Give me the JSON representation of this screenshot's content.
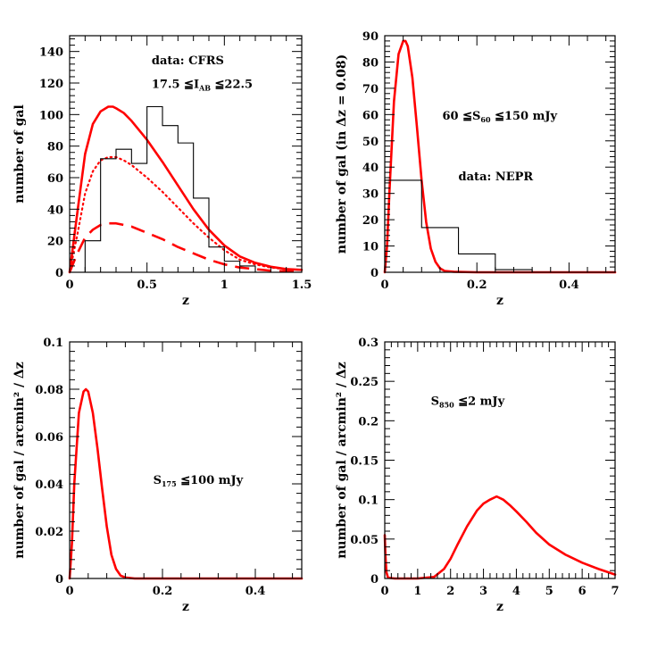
{
  "chart_data": [
    {
      "id": "cfrs",
      "type": "line",
      "xlabel": "z",
      "ylabel": "number of gal",
      "xlim": [
        0,
        1.5
      ],
      "ylim": [
        0,
        150
      ],
      "xticks": [
        0,
        0.5,
        1,
        1.5
      ],
      "xtick_labels": [
        "0",
        "0.5",
        "1",
        "1.5"
      ],
      "yticks": [
        0,
        20,
        40,
        60,
        80,
        100,
        120,
        140
      ],
      "ytick_labels": [
        "0",
        "20",
        "40",
        "60",
        "80",
        "100",
        "120",
        "140"
      ],
      "annotations": [
        {
          "text": "data: CFRS",
          "x": 0.53,
          "y": 132
        },
        {
          "text": "17.5  ≦I",
          "sub": "AB",
          "after": " ≦22.5",
          "x": 0.53,
          "y": 117
        }
      ],
      "series": [
        {
          "style": "solid",
          "color": "#ff0000",
          "x": [
            0,
            0.05,
            0.1,
            0.15,
            0.2,
            0.25,
            0.28,
            0.3,
            0.35,
            0.4,
            0.5,
            0.6,
            0.7,
            0.8,
            0.9,
            1.0,
            1.1,
            1.2,
            1.3,
            1.4,
            1.5
          ],
          "y": [
            0,
            38,
            75,
            94,
            102,
            105,
            105,
            104,
            101,
            96,
            84,
            70,
            55,
            40,
            27,
            17,
            10,
            6,
            3.5,
            2,
            1.5
          ]
        },
        {
          "style": "dotted",
          "color": "#ff0000",
          "x": [
            0,
            0.05,
            0.1,
            0.15,
            0.2,
            0.25,
            0.3,
            0.35,
            0.4,
            0.5,
            0.6,
            0.7,
            0.8,
            0.9,
            1.0,
            1.1,
            1.2,
            1.3,
            1.4,
            1.5
          ],
          "y": [
            0,
            24,
            50,
            64,
            71,
            73,
            73,
            71,
            68,
            60,
            51,
            41,
            31,
            22,
            14,
            8,
            5,
            3,
            2,
            1.5
          ]
        },
        {
          "style": "dashed",
          "color": "#ff0000",
          "x": [
            0,
            0.05,
            0.1,
            0.15,
            0.2,
            0.25,
            0.3,
            0.35,
            0.4,
            0.5,
            0.6,
            0.7,
            0.8,
            0.9,
            1.0,
            1.1,
            1.2,
            1.3,
            1.4,
            1.5
          ],
          "y": [
            0,
            12,
            22,
            27,
            30,
            31,
            31,
            30,
            29,
            25,
            21,
            16,
            12,
            8,
            5,
            3,
            2,
            1,
            0.6,
            0.3
          ]
        },
        {
          "style": "histogram",
          "color": "#000000",
          "edges": [
            0.1,
            0.2,
            0.3,
            0.4,
            0.5,
            0.6,
            0.7,
            0.8,
            0.9,
            1.0,
            1.1,
            1.2
          ],
          "counts": [
            20,
            72,
            78,
            69,
            105,
            93,
            82,
            47,
            16,
            7,
            4
          ]
        }
      ]
    },
    {
      "id": "nepr",
      "type": "line",
      "xlabel": "z",
      "ylabel": "number of gal (in Δz = 0.08)",
      "xlim": [
        0,
        0.5
      ],
      "ylim": [
        0,
        90
      ],
      "xticks": [
        0,
        0.2,
        0.4
      ],
      "xtick_labels": [
        "0",
        "0.2",
        "0.4"
      ],
      "yticks": [
        0,
        10,
        20,
        30,
        40,
        50,
        60,
        70,
        80,
        90
      ],
      "ytick_labels": [
        "0",
        "10",
        "20",
        "30",
        "40",
        "50",
        "60",
        "70",
        "80",
        "90"
      ],
      "annotations": [
        {
          "text": "60  ≦S",
          "sub": "60",
          "after": " ≦150  mJy",
          "x": 0.125,
          "y": 58
        },
        {
          "text": "data:  NEPR",
          "x": 0.16,
          "y": 35
        }
      ],
      "series": [
        {
          "style": "solid",
          "color": "#ff0000",
          "x": [
            0,
            0.005,
            0.01,
            0.02,
            0.03,
            0.04,
            0.045,
            0.05,
            0.06,
            0.07,
            0.08,
            0.09,
            0.1,
            0.11,
            0.12,
            0.13,
            0.15,
            0.2,
            0.5
          ],
          "y": [
            0,
            10,
            30,
            65,
            83,
            88,
            88,
            86,
            74,
            55,
            35,
            19,
            9,
            4,
            1.5,
            0.5,
            0.2,
            0,
            0
          ]
        },
        {
          "style": "histogram",
          "color": "#000000",
          "edges": [
            0,
            0.08,
            0.16,
            0.24,
            0.32
          ],
          "counts": [
            35,
            17,
            7,
            1
          ]
        }
      ]
    },
    {
      "id": "s175",
      "type": "line",
      "xlabel": "z",
      "ylabel": "number of gal / arcmin² / Δz",
      "xlim": [
        0,
        0.5
      ],
      "ylim": [
        0,
        0.1
      ],
      "xticks": [
        0,
        0.2,
        0.4
      ],
      "xtick_labels": [
        "0",
        "0.2",
        "0.4"
      ],
      "yticks": [
        0,
        0.02,
        0.04,
        0.06,
        0.08,
        0.1
      ],
      "ytick_labels": [
        "0",
        "0.02",
        "0.04",
        "0.06",
        "0.08",
        "0.1"
      ],
      "annotations": [
        {
          "text": "S",
          "sub": "175",
          "after": " ≦100  mJy",
          "x": 0.18,
          "y": 0.04
        }
      ],
      "series": [
        {
          "style": "solid",
          "color": "#ff0000",
          "x": [
            0,
            0.005,
            0.01,
            0.02,
            0.03,
            0.035,
            0.04,
            0.05,
            0.06,
            0.07,
            0.08,
            0.09,
            0.1,
            0.11,
            0.12,
            0.14,
            0.2,
            0.5
          ],
          "y": [
            0,
            0.015,
            0.04,
            0.07,
            0.079,
            0.08,
            0.079,
            0.07,
            0.055,
            0.038,
            0.022,
            0.01,
            0.004,
            0.0012,
            0.0004,
            0,
            0,
            0
          ]
        }
      ]
    },
    {
      "id": "s850",
      "type": "line",
      "xlabel": "z",
      "ylabel": "number of gal / arcmin² / Δz",
      "xlim": [
        0,
        7
      ],
      "ylim": [
        0,
        0.3
      ],
      "xticks": [
        0,
        1,
        2,
        3,
        4,
        5,
        6,
        7
      ],
      "xtick_labels": [
        "0",
        "1",
        "2",
        "3",
        "4",
        "5",
        "6",
        "7"
      ],
      "yticks": [
        0,
        0.05,
        0.1,
        0.15,
        0.2,
        0.25,
        0.3
      ],
      "ytick_labels": [
        "0",
        "0.05",
        "0.1",
        "0.15",
        "0.2",
        "0.25",
        "0.3"
      ],
      "annotations": [
        {
          "text": "S",
          "sub": "850",
          "after": " ≦2  mJy",
          "x": 1.4,
          "y": 0.22
        }
      ],
      "series": [
        {
          "style": "solid",
          "color": "#ff0000",
          "x": [
            0,
            0.02,
            0.05,
            0.1,
            0.3,
            1.0,
            1.5,
            1.8,
            2.0,
            2.2,
            2.5,
            2.8,
            3.0,
            3.2,
            3.4,
            3.6,
            3.8,
            4.0,
            4.3,
            4.6,
            5.0,
            5.5,
            6.0,
            6.5,
            7.0
          ],
          "y": [
            0.055,
            0.03,
            0.008,
            0.001,
            0,
            0,
            0.002,
            0.012,
            0.025,
            0.042,
            0.066,
            0.086,
            0.095,
            0.1,
            0.104,
            0.1,
            0.093,
            0.085,
            0.072,
            0.058,
            0.043,
            0.03,
            0.02,
            0.012,
            0.005
          ]
        }
      ]
    }
  ]
}
